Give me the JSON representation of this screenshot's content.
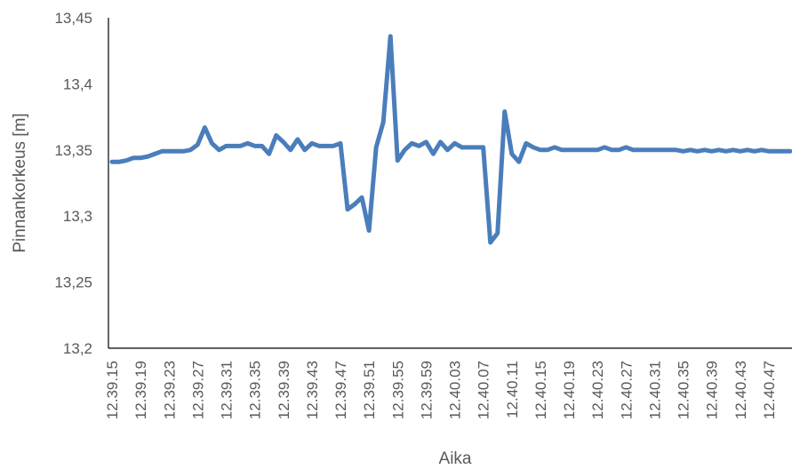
{
  "chart_data": {
    "type": "line",
    "title": "",
    "xlabel": "Aika",
    "ylabel": "Pinnankorkeus [m]",
    "ylim": [
      13.2,
      13.45
    ],
    "yticks": [
      "13,2",
      "13,25",
      "13,3",
      "13,35",
      "13,4",
      "13,45"
    ],
    "xticks": [
      "12.39.15",
      "12.39.19",
      "12.39.23",
      "12.39.27",
      "12.39.31",
      "12.39.35",
      "12.39.39",
      "12.39.43",
      "12.39.47",
      "12.39.51",
      "12.39.55",
      "12.39.59",
      "12.40.03",
      "12.40.07",
      "12.40.11",
      "12.40.15",
      "12.40.19",
      "12.40.23",
      "12.40.27",
      "12.40.31",
      "12.40.35",
      "12.40.39",
      "12.40.43",
      "12.40.47"
    ],
    "grid": false,
    "legend": "none",
    "series_color": "#4a7ebb",
    "series": [
      {
        "values": [
          13.341,
          13.341,
          13.342,
          13.344,
          13.344,
          13.345,
          13.347,
          13.349,
          13.349,
          13.349,
          13.349,
          13.35,
          13.354,
          13.367,
          13.355,
          13.35,
          13.353,
          13.353,
          13.353,
          13.355,
          13.353,
          13.353,
          13.347,
          13.361,
          13.356,
          13.35,
          13.358,
          13.35,
          13.355,
          13.353,
          13.353,
          13.353,
          13.355,
          13.305,
          13.309,
          13.314,
          13.289,
          13.352,
          13.371,
          13.436,
          13.342,
          13.35,
          13.355,
          13.353,
          13.356,
          13.347,
          13.356,
          13.35,
          13.355,
          13.352,
          13.352,
          13.352,
          13.352,
          13.28,
          13.287,
          13.379,
          13.347,
          13.341,
          13.355,
          13.352,
          13.35,
          13.35,
          13.352,
          13.35,
          13.35,
          13.35,
          13.35,
          13.35,
          13.35,
          13.352,
          13.35,
          13.35,
          13.352,
          13.35,
          13.35,
          13.35,
          13.35,
          13.35,
          13.35,
          13.35,
          13.349,
          13.35,
          13.349,
          13.35,
          13.349,
          13.35,
          13.349,
          13.35,
          13.349,
          13.35,
          13.349,
          13.35,
          13.349,
          13.349,
          13.349,
          13.349
        ]
      }
    ]
  }
}
